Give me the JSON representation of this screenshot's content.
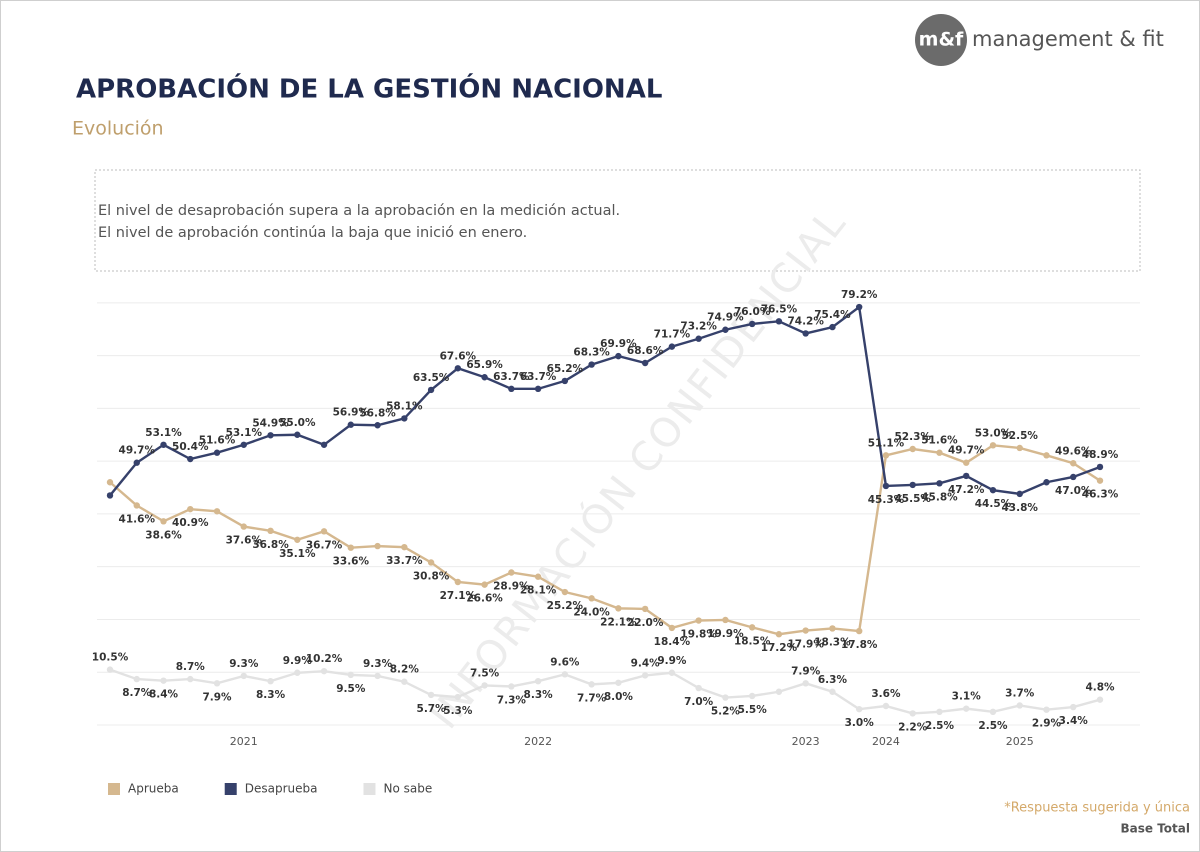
{
  "brand": {
    "mark": "m&f",
    "name": "management & fit"
  },
  "chart_data": {
    "type": "line",
    "title": "APROBACIÓN DE LA GESTIÓN NACIONAL",
    "subtitle": "Evolución",
    "note": [
      "El nivel de desaprobación supera a la aprobación en la medición actual.",
      "El nivel de aprobación continúa la baja que inició en enero."
    ],
    "watermark": "INFORMACIÓN CONFIDENCIAL",
    "categories": [
      null,
      null,
      null,
      null,
      null,
      "2021",
      null,
      null,
      null,
      null,
      null,
      null,
      null,
      null,
      null,
      null,
      "2022",
      null,
      null,
      null,
      null,
      null,
      null,
      null,
      null,
      null,
      "2023",
      null,
      null,
      "2024",
      null,
      null,
      null,
      null,
      "2025",
      null,
      null,
      null
    ],
    "series": [
      {
        "name": "Aprueba",
        "color": "#d5b88f",
        "values": [
          46.0,
          41.6,
          38.6,
          40.9,
          40.5,
          37.6,
          36.8,
          35.1,
          36.7,
          33.6,
          33.9,
          33.7,
          30.8,
          27.1,
          26.6,
          28.9,
          28.1,
          25.2,
          24.0,
          22.1,
          22.0,
          18.4,
          19.8,
          19.9,
          18.5,
          17.2,
          17.9,
          18.3,
          17.8,
          51.1,
          52.3,
          51.6,
          49.7,
          53.0,
          52.5,
          51.1,
          49.6,
          46.3
        ],
        "value_labels": [
          null,
          "41.6%",
          "38.6%",
          "40.9%",
          null,
          "37.6%",
          "36.8%",
          "35.1%",
          "36.7%",
          "33.6%",
          null,
          "33.7%",
          "30.8%",
          "27.1%",
          "26.6%",
          "28.9%",
          "28.1%",
          "25.2%",
          "24.0%",
          "22.1%",
          "22.0%",
          "18.4%",
          "19.8%",
          "19.9%",
          "18.5%",
          "17.2%",
          "17.9%",
          "18.3%",
          "17.8%",
          "51.1%",
          "52.3%",
          "51.6%",
          "49.7%",
          "53.0%",
          "52.5%",
          null,
          "49.6%",
          "46.3%"
        ]
      },
      {
        "name": "Desaprueba",
        "color": "#36416b",
        "values": [
          43.5,
          49.7,
          53.1,
          50.4,
          51.6,
          53.1,
          54.9,
          55.0,
          53.1,
          56.9,
          56.8,
          58.1,
          63.5,
          67.6,
          65.9,
          63.7,
          63.7,
          65.2,
          68.3,
          69.9,
          68.6,
          71.7,
          73.2,
          74.9,
          76.0,
          76.5,
          74.2,
          75.4,
          79.2,
          45.3,
          45.5,
          45.8,
          47.2,
          44.5,
          43.8,
          46.0,
          47.0,
          48.9
        ],
        "value_labels": [
          null,
          "49.7%",
          "53.1%",
          "50.4%",
          "51.6%",
          "53.1%",
          "54.9%",
          "55.0%",
          null,
          "56.9%",
          "56.8%",
          "58.1%",
          "63.5%",
          "67.6%",
          "65.9%",
          "63.7%",
          "63.7%",
          "65.2%",
          "68.3%",
          "69.9%",
          "68.6%",
          "71.7%",
          "73.2%",
          "74.9%",
          "76.0%",
          "76.5%",
          "74.2%",
          "75.4%",
          "79.2%",
          "45.3%",
          "45.5%",
          "45.8%",
          "47.2%",
          "44.5%",
          "43.8%",
          null,
          "47.0%",
          "48.9%"
        ]
      },
      {
        "name": "No sabe",
        "color": "#e2e2e2",
        "values": [
          10.5,
          8.7,
          8.4,
          8.7,
          7.9,
          9.3,
          8.3,
          9.9,
          10.2,
          9.5,
          9.3,
          8.2,
          5.7,
          5.3,
          7.5,
          7.3,
          8.3,
          9.6,
          7.7,
          8.0,
          9.4,
          9.9,
          7.0,
          5.2,
          5.5,
          6.3,
          7.9,
          6.3,
          3.0,
          3.6,
          2.2,
          2.5,
          3.1,
          2.5,
          3.7,
          2.9,
          3.4,
          4.8
        ],
        "value_labels": [
          "10.5%",
          "8.7%",
          "8.4%",
          "8.7%",
          "7.9%",
          "9.3%",
          "8.3%",
          "9.9%",
          "10.2%",
          "9.5%",
          "9.3%",
          "8.2%",
          "5.7%",
          "5.3%",
          "7.5%",
          "7.3%",
          "8.3%",
          "9.6%",
          "7.7%",
          "8.0%",
          "9.4%",
          "9.9%",
          "7.0%",
          "5.2%",
          "5.5%",
          null,
          "7.9%",
          "6.3%",
          "3.0%",
          "3.6%",
          "2.2%",
          "2.5%",
          "3.1%",
          "2.5%",
          "3.7%",
          "2.9%",
          "3.4%",
          "4.8%"
        ]
      }
    ],
    "ylim": [
      0,
      83
    ],
    "yticks": [
      0,
      10,
      20,
      30,
      40,
      50,
      60,
      70,
      80
    ],
    "grid": true,
    "legend": "bottom-left"
  },
  "footer": {
    "note": "*Respuesta sugerida y única",
    "base": "Base Total"
  }
}
